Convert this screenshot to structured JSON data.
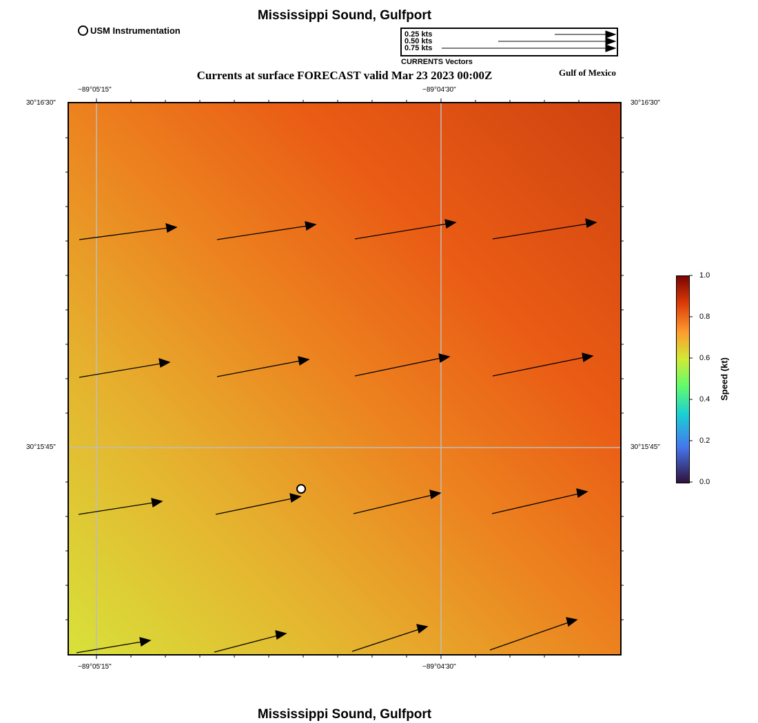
{
  "header": {
    "title": "Mississippi Sound, Gulfport",
    "subtitle": "Currents at surface FORECAST valid Mar 23 2023 00:00Z",
    "region": "Gulf of Mexico",
    "bottom_title": "Mississippi Sound, Gulfport"
  },
  "station_legend": {
    "label": "USM Instrumentation",
    "icon": "open-circle-icon"
  },
  "vector_scale": {
    "caption": "CURRENTS Vectors",
    "entries": [
      {
        "label": "0.25 kts",
        "speed": 0.25
      },
      {
        "label": "0.50 kts",
        "speed": 0.5
      },
      {
        "label": "0.75 kts",
        "speed": 0.75
      }
    ]
  },
  "axes": {
    "lon_labels": [
      "−89°05'15\"",
      "−89°04'30\""
    ],
    "lat_labels": [
      "30°16'30\"",
      "30°15'45\""
    ]
  },
  "colorbar": {
    "label": "Speed (kt)",
    "ticks": [
      "0.0",
      "0.2",
      "0.4",
      "0.6",
      "0.8",
      "1.0"
    ],
    "min": 0.0,
    "max": 1.0
  },
  "colors": {
    "grid": "#bdbdbd",
    "arrow": "#000000",
    "station_fill": "#ffffff"
  }
}
